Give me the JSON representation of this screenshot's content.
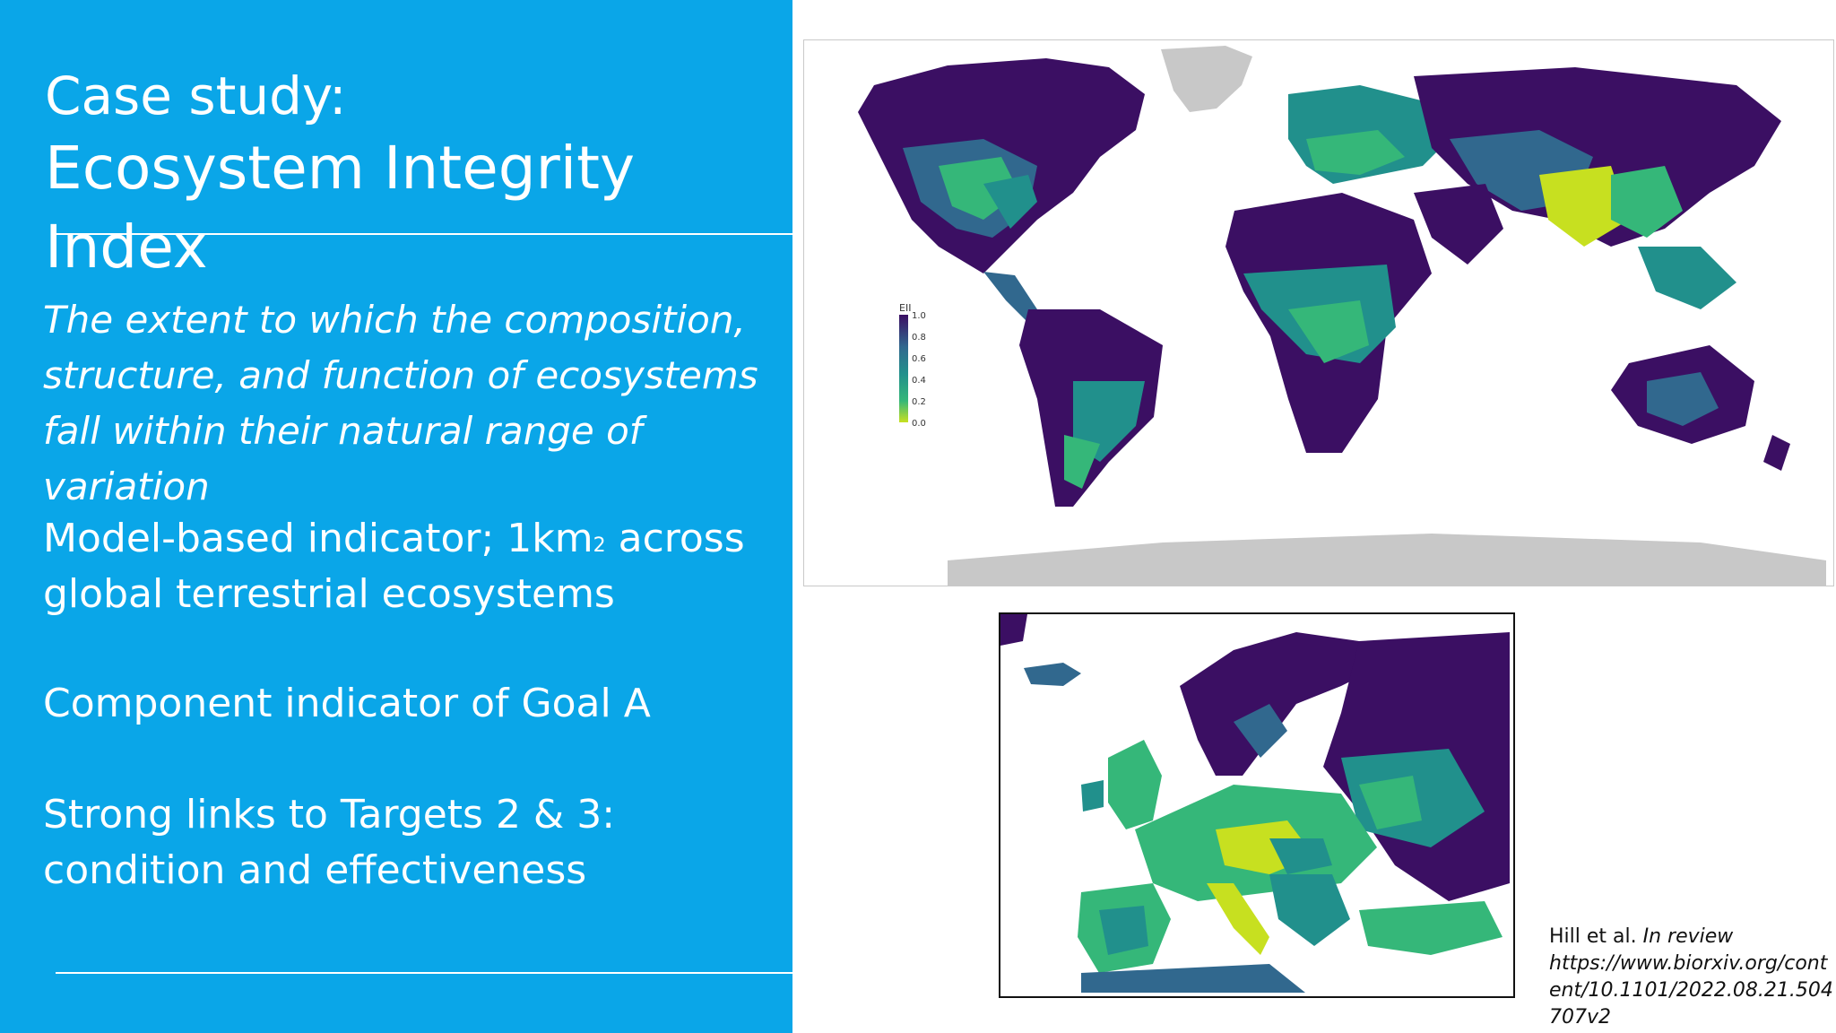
{
  "slide": {
    "title_line1": "Case study:",
    "title_line2": "Ecosystem Integrity Index",
    "definition": "The extent to which the composition, structure, and function of ecosystems fall within their natural range of variation",
    "point1_a": "Model-based indicator; 1km",
    "point1_sup": "2",
    "point1_b": " across global terrestrial ecosystems",
    "point2": "Component indicator of Goal A",
    "point3": "Strong links to Targets 2 & 3: condition and effectiveness"
  },
  "legend": {
    "title": "EII",
    "ticks": [
      "1.0",
      "0.8",
      "0.6",
      "0.4",
      "0.2",
      "0.0"
    ]
  },
  "citation": {
    "authors": "Hill et al.",
    "status": "In review",
    "url": "https://www.biorxiv.org/content/10.1101/2022.08.21.504707v2"
  },
  "colors": {
    "panel": "#0aa6e8",
    "high": "#3b0f63",
    "mid_high": "#31688e",
    "mid": "#21908c",
    "mid_low": "#35b779",
    "low": "#c7e020",
    "ice": "#c8c8c8"
  }
}
